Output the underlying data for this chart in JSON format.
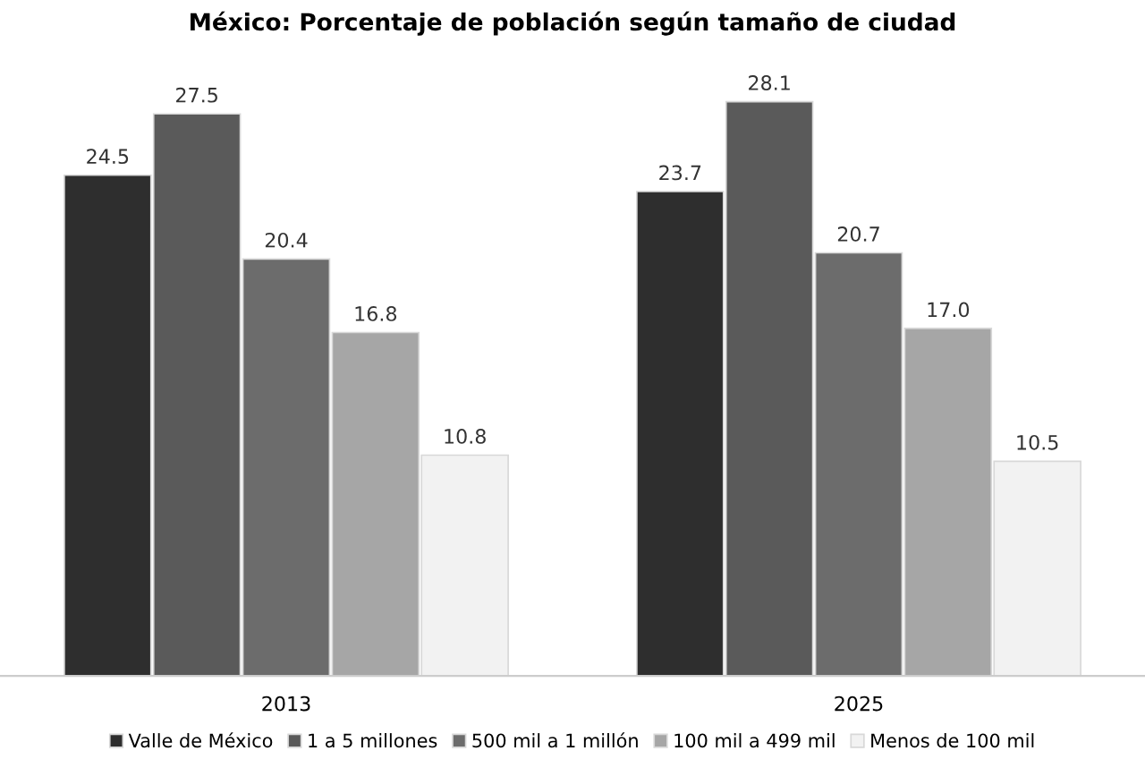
{
  "chart_data": {
    "type": "bar",
    "title": "México: Porcentaje de población según tamaño de ciudad",
    "categories": [
      "2013",
      "2025"
    ],
    "series": [
      {
        "name": "Valle de México",
        "color": "#2e2e2e",
        "values": [
          24.5,
          23.7
        ],
        "value_labels": [
          "24.5",
          "23.7"
        ]
      },
      {
        "name": "1 a 5 millones",
        "color": "#5a5a5a",
        "values": [
          27.5,
          28.1
        ],
        "value_labels": [
          "27.5",
          "28.1"
        ]
      },
      {
        "name": "500 mil a 1 millón",
        "color": "#6c6c6c",
        "values": [
          20.4,
          20.7
        ],
        "value_labels": [
          "20.4",
          "20.7"
        ]
      },
      {
        "name": "100 mil a 499 mil",
        "color": "#a6a6a6",
        "values": [
          16.8,
          17.0
        ],
        "value_labels": [
          "16.8",
          "17.0"
        ]
      },
      {
        "name": "Menos de 100 mil",
        "color": "#f2f2f2",
        "values": [
          10.8,
          10.5
        ],
        "value_labels": [
          "10.8",
          "10.5"
        ]
      }
    ],
    "legend": "bottom",
    "grid": false
  }
}
